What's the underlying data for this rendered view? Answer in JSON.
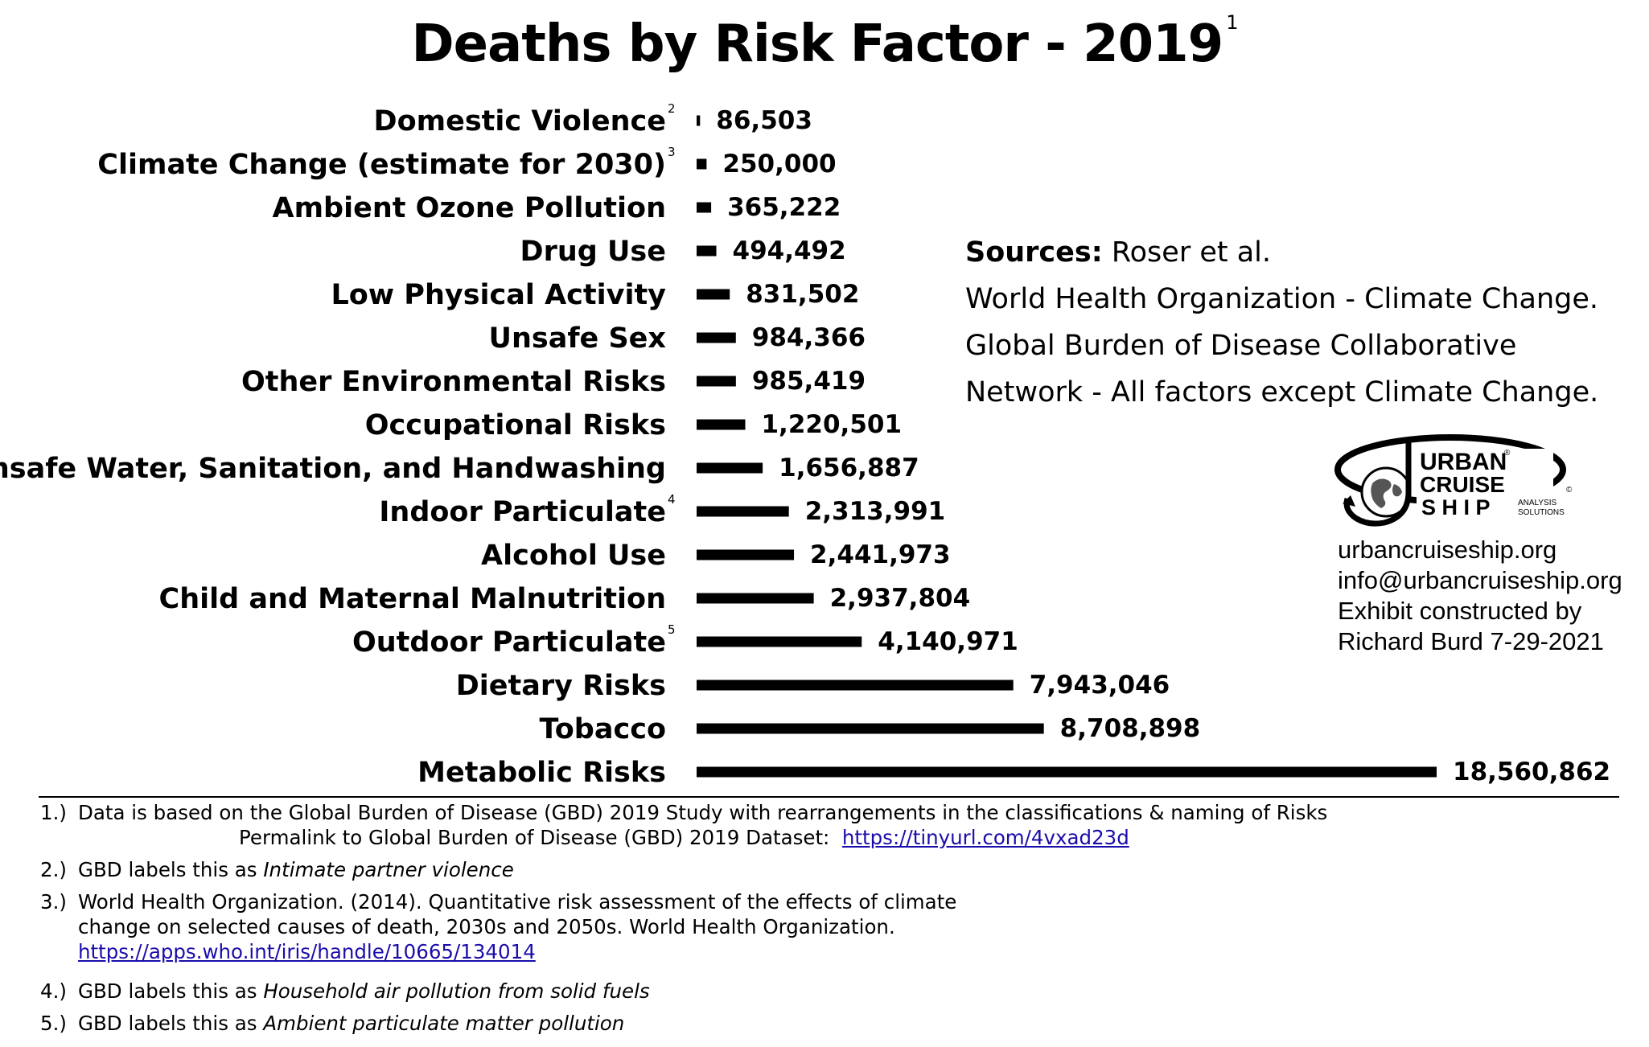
{
  "chart_data": {
    "type": "bar",
    "orientation": "horizontal",
    "title": "Deaths by Risk Factor - 2019",
    "title_footnote": "1",
    "categories": [
      "Domestic Violence",
      "Climate Change (estimate for 2030)",
      "Ambient Ozone Pollution",
      "Drug Use",
      "Low Physical Activity",
      "Unsafe Sex",
      "Other Environmental Risks",
      "Occupational Risks",
      "Unsafe Water, Sanitation, and Handwashing",
      "Indoor Particulate",
      "Alcohol Use",
      "Child and Maternal Malnutrition",
      "Outdoor Particulate",
      "Dietary Risks",
      "Tobacco",
      "Metabolic Risks"
    ],
    "category_footnotes": [
      "2",
      "3",
      "",
      "",
      "",
      "",
      "",
      "",
      "",
      "4",
      "",
      "",
      "5",
      "",
      "",
      ""
    ],
    "values": [
      86503,
      250000,
      365222,
      494492,
      831502,
      984366,
      985419,
      1220501,
      1656887,
      2313991,
      2441973,
      2937804,
      4140971,
      7943046,
      8708898,
      18560862
    ],
    "value_labels": [
      "86,503",
      "250,000",
      "365,222",
      "494,492",
      "831,502",
      "984,366",
      "985,419",
      "1,220,501",
      "1,656,887",
      "2,313,991",
      "2,441,973",
      "2,937,804",
      "4,140,971",
      "7,943,046",
      "8,708,898",
      "18,560,862"
    ],
    "xlim": [
      0,
      18560862
    ],
    "grid": false,
    "bar_color": "#000000"
  },
  "sources": {
    "label": "Sources:",
    "line1": "Roser et al.",
    "line2": "World Health Organization - Climate Change.",
    "line3": "Global Burden of Disease Collaborative",
    "line4": "Network - All factors except Climate Change."
  },
  "logo": {
    "word1": "URBAN",
    "word2": "CRUISE",
    "word3": "S H I P",
    "tag1": "ANALYSIS",
    "tag2": "SOLUTIONS",
    "reg_mark": "®",
    "copy_mark": "©"
  },
  "contact": {
    "website": "urbancruiseship.org",
    "email": "info@urbancruiseship.org",
    "line3": "Exhibit constructed by",
    "line4": "Richard Burd 7-29-2021"
  },
  "footnotes": {
    "n1": {
      "num": "1.)",
      "text": "Data is based on the Global Burden of Disease (GBD) 2019 Study with rearrangements in the classifications & naming of Risks",
      "permalink_label": "Permalink to Global Burden of Disease (GBD) 2019 Dataset:",
      "permalink_url": "https://tinyurl.com/4vxad23d"
    },
    "n2": {
      "num": "2.)",
      "text": "GBD labels this as",
      "italic": "Intimate partner violence"
    },
    "n3": {
      "num": "3.)",
      "line1": "World Health Organization. (2014). Quantitative risk assessment of the effects of climate",
      "line2": "change on selected causes of death, 2030s and 2050s. World Health Organization.",
      "url": "https://apps.who.int/iris/handle/10665/134014"
    },
    "n4": {
      "num": "4.)",
      "text": "GBD labels this as",
      "italic": "Household air pollution from solid fuels"
    },
    "n5": {
      "num": "5.)",
      "text": "GBD labels this as",
      "italic": "Ambient particulate matter pollution"
    }
  }
}
